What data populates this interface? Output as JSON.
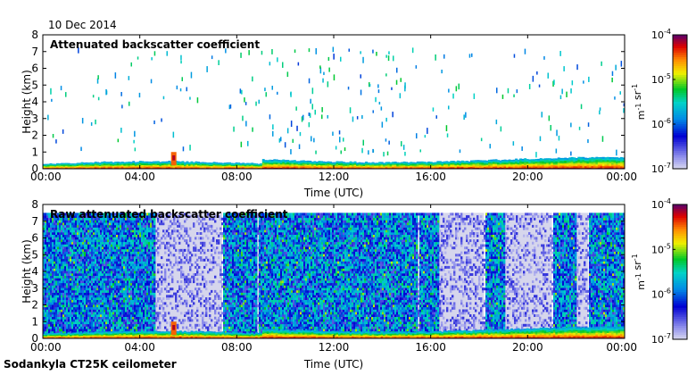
{
  "date_label": "10 Dec 2014",
  "footer": "Sodankyla CT25K ceilometer",
  "chart_data": [
    {
      "type": "heatmap",
      "title": "Attenuated backscatter coefficient",
      "xlabel": "Time (UTC)",
      "ylabel": "Height (km)",
      "x_ticks": [
        "00:00",
        "04:00",
        "08:00",
        "12:00",
        "16:00",
        "20:00",
        "00:00"
      ],
      "x_tick_hours": [
        0,
        4,
        8,
        12,
        16,
        20,
        24
      ],
      "y_ticks": [
        "0",
        "1",
        "2",
        "3",
        "4",
        "5",
        "6",
        "7",
        "8"
      ],
      "xlim_hours": [
        0,
        24
      ],
      "ylim_km": [
        0,
        8
      ],
      "colorbar": {
        "label": "m-1 sr-1",
        "scale": "log",
        "range": [
          1e-07,
          0.0001
        ],
        "ticks": [
          {
            "base": "10",
            "exp": "-4",
            "value": 0.0001
          },
          {
            "base": "10",
            "exp": "-5",
            "value": 1e-05
          },
          {
            "base": "10",
            "exp": "-6",
            "value": 1e-06
          },
          {
            "base": "10",
            "exp": "-7",
            "value": 1e-07
          }
        ]
      },
      "features": {
        "boundary_layer_top_km": 0.35,
        "sparse_cloud_speckle_heights_km": [
          1,
          7.3
        ],
        "convective_feature_hour": 5.4
      }
    },
    {
      "type": "heatmap",
      "title": "Raw attenuated backscatter coefficient",
      "xlabel": "Time (UTC)",
      "ylabel": "Height (km)",
      "x_ticks": [
        "00:00",
        "04:00",
        "08:00",
        "12:00",
        "16:00",
        "20:00",
        "00:00"
      ],
      "x_tick_hours": [
        0,
        4,
        8,
        12,
        16,
        20,
        24
      ],
      "y_ticks": [
        "0",
        "1",
        "2",
        "3",
        "4",
        "5",
        "6",
        "7",
        "8"
      ],
      "xlim_hours": [
        0,
        24
      ],
      "ylim_km": [
        0,
        8
      ],
      "colorbar": {
        "label": "m-1 sr-1",
        "scale": "log",
        "range": [
          1e-07,
          0.0001
        ],
        "ticks": [
          {
            "base": "10",
            "exp": "-4",
            "value": 0.0001
          },
          {
            "base": "10",
            "exp": "-5",
            "value": 1e-05
          },
          {
            "base": "10",
            "exp": "-6",
            "value": 1e-06
          },
          {
            "base": "10",
            "exp": "-7",
            "value": 1e-07
          }
        ]
      },
      "features": {
        "noise_top_km": 7.5,
        "low_noise_intervals_hours": [
          [
            4.6,
            7.4
          ],
          [
            8.8,
            8.9
          ],
          [
            15.4,
            15.5
          ],
          [
            16.3,
            18.2
          ],
          [
            19.0,
            21.0
          ],
          [
            22.0,
            22.5
          ]
        ]
      }
    }
  ]
}
